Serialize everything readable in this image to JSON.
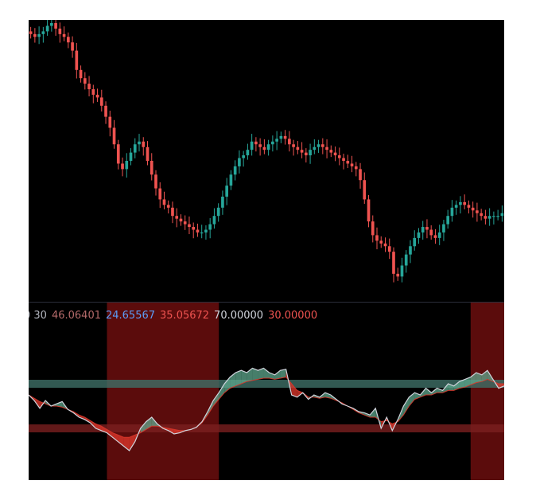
{
  "legend": {
    "prefix": "0 30",
    "v1": "46.06401",
    "v2": "24.65567",
    "v3": "35.05672",
    "v4": "70.00000",
    "v5": "30.00000"
  },
  "colors": {
    "background": "#000000",
    "bull": "#26a69a",
    "bear": "#ef5350",
    "legend_prefix": "#b2b5be",
    "legend_v1": "#b56a6a",
    "legend_v2": "#5b9cf6",
    "legend_v3": "#ef5350",
    "legend_v4": "#d1d4dc",
    "legend_v5": "#ef5350",
    "rsi_line": "#d1d4dc",
    "cloud_bull": "#5fa88e",
    "cloud_bear": "#d8362a",
    "upper_band": "#3f6f66",
    "lower_band": "#7a1f1f",
    "zone_shade": "#7a1010"
  },
  "chart_data": [
    {
      "type": "candlestick",
      "title": "",
      "xlabel": "",
      "ylabel": "",
      "ylim": [
        0,
        100
      ],
      "close": [
        96,
        95,
        96,
        97,
        99,
        100,
        98,
        96,
        95,
        93,
        90,
        83,
        80,
        78,
        76,
        74,
        73,
        70,
        66,
        62,
        56,
        49,
        47,
        50,
        53,
        56,
        57,
        55,
        50,
        45,
        40,
        36,
        34,
        33,
        30,
        29,
        28,
        27,
        26,
        25,
        24,
        24,
        25,
        27,
        30,
        33,
        37,
        41,
        45,
        48,
        51,
        52,
        54,
        57,
        56,
        55,
        54,
        56,
        57,
        58,
        59,
        58,
        56,
        55,
        54,
        53,
        52,
        54,
        55,
        56,
        55,
        54,
        53,
        52,
        51,
        50,
        49,
        48,
        47,
        43,
        36,
        28,
        23,
        21,
        20,
        19,
        17,
        9,
        8,
        12,
        16,
        19,
        22,
        24,
        26,
        25,
        23,
        22,
        24,
        27,
        30,
        33,
        34,
        35,
        34,
        33,
        32,
        31,
        30,
        29,
        30,
        30,
        30,
        31
      ],
      "ohlc_note": ""
    },
    {
      "type": "area",
      "title": "",
      "xlabel": "",
      "ylabel": "",
      "ylim": [
        0,
        100
      ],
      "reference_lines": [
        70,
        30
      ],
      "rsi": [
        60,
        55,
        48,
        55,
        50,
        52,
        54,
        47,
        44,
        40,
        38,
        35,
        30,
        28,
        26,
        22,
        18,
        14,
        10,
        18,
        30,
        36,
        40,
        34,
        30,
        28,
        25,
        26,
        28,
        29,
        31,
        36,
        45,
        55,
        62,
        70,
        76,
        80,
        82,
        80,
        84,
        82,
        84,
        80,
        78,
        82,
        83,
        60,
        58,
        62,
        56,
        60,
        58,
        62,
        60,
        56,
        52,
        50,
        48,
        45,
        44,
        42,
        48,
        30,
        40,
        28,
        38,
        50,
        58,
        62,
        60,
        66,
        62,
        66,
        64,
        70,
        68,
        72,
        74,
        76,
        80,
        78,
        82,
        74,
        66,
        68
      ],
      "signal": [
        60,
        57,
        54,
        52,
        50,
        50,
        49,
        47,
        45,
        42,
        40,
        37,
        34,
        32,
        29,
        26,
        24,
        22,
        22,
        24,
        26,
        29,
        32,
        32,
        31,
        30,
        29,
        28,
        28,
        29,
        31,
        35,
        42,
        50,
        56,
        62,
        66,
        68,
        70,
        72,
        73,
        74,
        75,
        75,
        74,
        75,
        76,
        70,
        64,
        62,
        58,
        58,
        57,
        58,
        57,
        55,
        53,
        50,
        47,
        44,
        42,
        40,
        40,
        36,
        37,
        34,
        36,
        42,
        50,
        56,
        58,
        60,
        60,
        62,
        62,
        64,
        64,
        66,
        67,
        69,
        71,
        72,
        74,
        72,
        70,
        70
      ],
      "bear_zones": [
        [
          14,
          34
        ],
        [
          79,
          85
        ]
      ]
    }
  ]
}
